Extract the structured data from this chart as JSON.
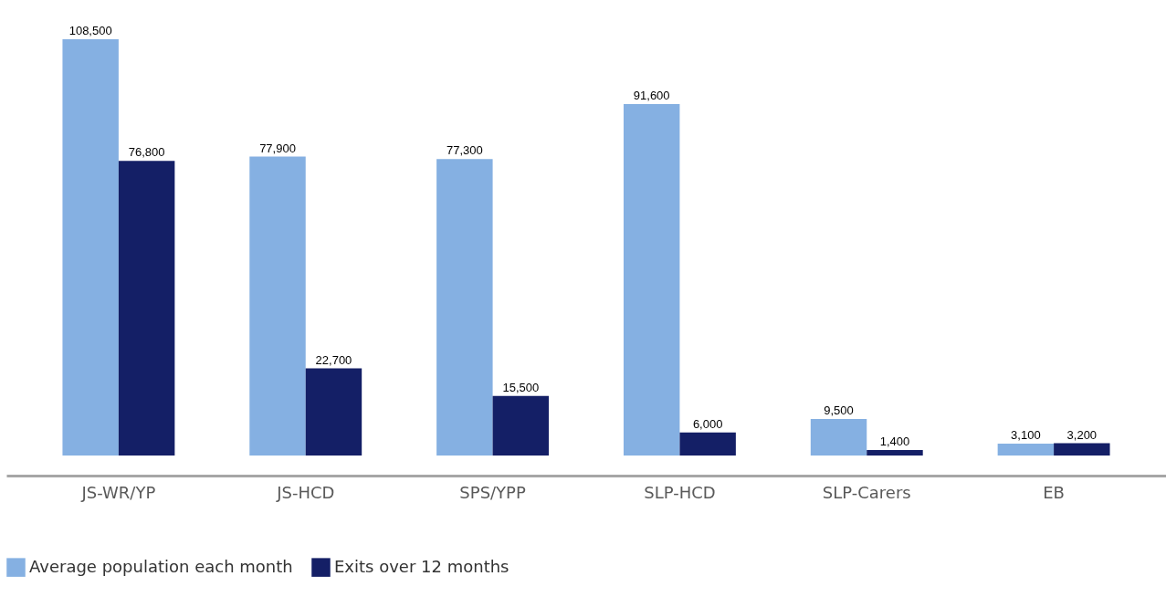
{
  "chart_data": {
    "type": "bar",
    "categories": [
      "JS-WR/YP",
      "JS-HCD",
      "SPS/YPP",
      "SLP-HCD",
      "SLP-Carers",
      "EB"
    ],
    "series": [
      {
        "name": "Average population each month",
        "color": "#85b0e2",
        "values": [
          108500,
          77900,
          77300,
          91600,
          9500,
          3100
        ],
        "value_labels": [
          "108,500",
          "77,900",
          "77,300",
          "91,600",
          "9,500",
          "3,100"
        ]
      },
      {
        "name": "Exits over 12 months",
        "color": "#141f66",
        "values": [
          76800,
          22700,
          15500,
          6000,
          1400,
          3200
        ],
        "value_labels": [
          "76,800",
          "22,700",
          "15,500",
          "6,000",
          "1,400",
          "3,200"
        ]
      }
    ],
    "legend": "bottom",
    "grid": false
  }
}
